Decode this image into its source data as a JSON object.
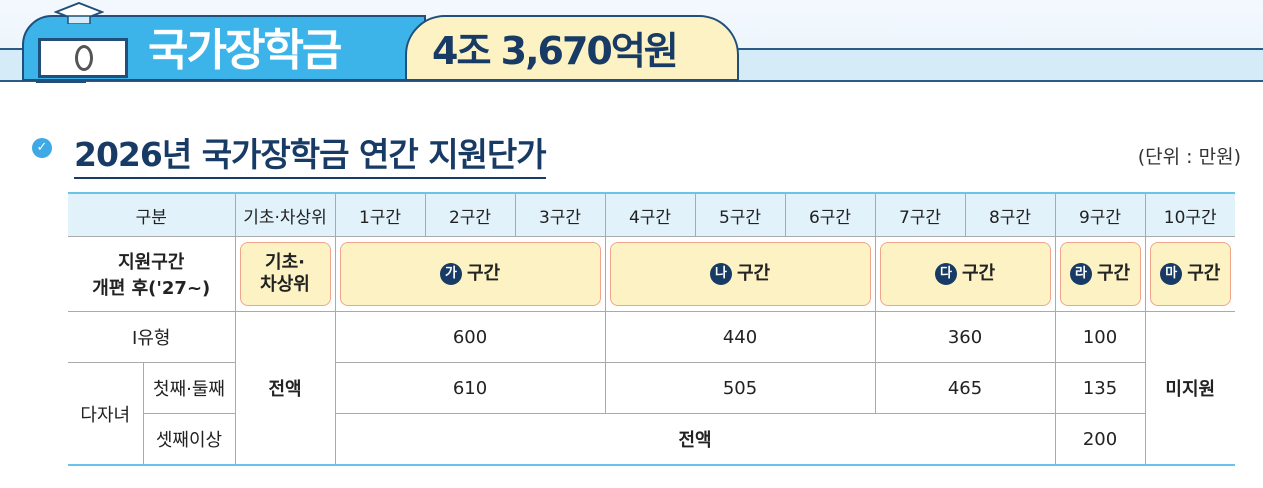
{
  "banner": {
    "title": "국가장학금",
    "amount": "4조 3,670억원"
  },
  "section": {
    "title": "2026년 국가장학금 연간 지원단가",
    "unit": "(단위 : 만원)"
  },
  "table": {
    "header": [
      "구분",
      "기초·차상위",
      "1구간",
      "2구간",
      "3구간",
      "4구간",
      "5구간",
      "6구간",
      "7구간",
      "8구간",
      "9구간",
      "10구간"
    ],
    "zone_row": {
      "label_line1": "지원구간",
      "label_line2": "개편 후('27~)",
      "basic_line1": "기초·",
      "basic_line2": "차상위",
      "zones": [
        {
          "badge": "가",
          "label": "구간"
        },
        {
          "badge": "나",
          "label": "구간"
        },
        {
          "badge": "다",
          "label": "구간"
        },
        {
          "badge": "라",
          "label": "구간"
        },
        {
          "badge": "마",
          "label": "구간"
        }
      ]
    },
    "type1": {
      "label": "Ⅰ유형",
      "values": [
        "600",
        "440",
        "360",
        "100"
      ]
    },
    "multi": {
      "label": "다자녀",
      "first_second": {
        "label": "첫째·둘째",
        "values": [
          "610",
          "505",
          "465",
          "135"
        ]
      },
      "third_plus": {
        "label": "셋째이상",
        "full": "전액",
        "value9": "200"
      }
    },
    "basic_full": "전액",
    "no_support": "미지원"
  }
}
